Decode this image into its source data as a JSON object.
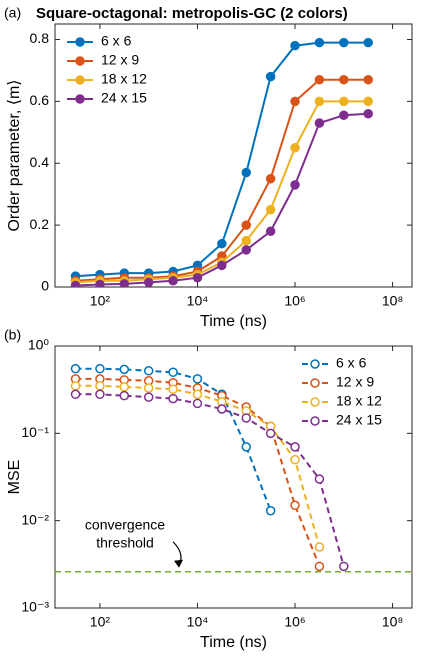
{
  "chart_data": [
    {
      "type": "line",
      "panel_label": "(a)",
      "title": "Square-octagonal: metropolis-GC (2 colors)",
      "xlabel": "Time (ns)",
      "ylabel": "Order parameter, ⟨m⟩",
      "xscale": "log",
      "yscale": "linear",
      "marker": "filled",
      "linestyle": "solid",
      "legend": "upper left",
      "xlim": [
        12,
        250000000
      ],
      "ylim": [
        0,
        0.85
      ],
      "xticks": [
        {
          "value": 100,
          "label": "10²"
        },
        {
          "value": 10000,
          "label": "10⁴"
        },
        {
          "value": 1000000,
          "label": "10⁶"
        },
        {
          "value": 100000000,
          "label": "10⁸"
        }
      ],
      "yticks": [
        0,
        0.2,
        0.4,
        0.6,
        0.8
      ],
      "x": [
        31.6,
        100,
        316,
        1000,
        3162,
        10000,
        31623,
        100000,
        316228,
        1000000,
        3162278,
        10000000,
        31622777
      ],
      "series": [
        {
          "name": "6 x 6",
          "color": "#0072BD",
          "values": [
            0.035,
            0.04,
            0.045,
            0.045,
            0.05,
            0.07,
            0.14,
            0.37,
            0.68,
            0.78,
            0.79,
            0.79,
            0.79
          ]
        },
        {
          "name": "12 x 9",
          "color": "#D95319",
          "values": [
            0.02,
            0.025,
            0.03,
            0.03,
            0.035,
            0.05,
            0.1,
            0.2,
            0.35,
            0.6,
            0.67,
            0.67,
            0.67
          ]
        },
        {
          "name": "18 x 12",
          "color": "#EDB120",
          "values": [
            0.015,
            0.02,
            0.02,
            0.025,
            0.03,
            0.04,
            0.08,
            0.15,
            0.25,
            0.45,
            0.6,
            0.6,
            0.6
          ]
        },
        {
          "name": "24 x 15",
          "color": "#7E2F8E",
          "values": [
            0.005,
            0.008,
            0.01,
            0.015,
            0.02,
            0.03,
            0.07,
            0.12,
            0.18,
            0.33,
            0.53,
            0.555,
            0.56
          ]
        }
      ]
    },
    {
      "type": "line",
      "panel_label": "(b)",
      "xlabel": "Time (ns)",
      "ylabel": "MSE",
      "xscale": "log",
      "yscale": "log",
      "marker": "open",
      "linestyle": "dashed",
      "legend": "upper right",
      "xlim": [
        12,
        250000000
      ],
      "ylim": [
        0.001,
        1
      ],
      "xticks": [
        {
          "value": 100,
          "label": "10²"
        },
        {
          "value": 10000,
          "label": "10⁴"
        },
        {
          "value": 1000000,
          "label": "10⁶"
        },
        {
          "value": 100000000,
          "label": "10⁸"
        }
      ],
      "yticks": [
        {
          "value": 0.001,
          "label": "10⁻³"
        },
        {
          "value": 0.01,
          "label": "10⁻²"
        },
        {
          "value": 0.1,
          "label": "10⁻¹"
        },
        {
          "value": 1,
          "label": "10⁰"
        }
      ],
      "threshold": 0.0026,
      "threshold_color": "#77AC30",
      "annotation": [
        "convergence",
        "threshold"
      ],
      "x": [
        31.6,
        100,
        316,
        1000,
        3162,
        10000,
        31623,
        100000,
        316228,
        1000000,
        3162278,
        10000000,
        31622777
      ],
      "series": [
        {
          "name": "6 x 6",
          "color": "#0072BD",
          "values": [
            0.55,
            0.55,
            0.54,
            0.52,
            0.5,
            0.42,
            0.28,
            0.07,
            0.013,
            null,
            null,
            null,
            null
          ]
        },
        {
          "name": "12 x 9",
          "color": "#D95319",
          "values": [
            0.42,
            0.42,
            0.41,
            0.4,
            0.38,
            0.33,
            0.27,
            0.2,
            0.12,
            0.015,
            0.003,
            null,
            null
          ]
        },
        {
          "name": "18 x 12",
          "color": "#EDB120",
          "values": [
            0.35,
            0.35,
            0.34,
            0.33,
            0.32,
            0.28,
            0.23,
            0.18,
            0.12,
            0.05,
            0.005,
            null,
            null
          ]
        },
        {
          "name": "24 x 15",
          "color": "#7E2F8E",
          "values": [
            0.28,
            0.28,
            0.27,
            0.26,
            0.25,
            0.22,
            0.19,
            0.15,
            0.1,
            0.07,
            0.03,
            0.003,
            null
          ]
        }
      ]
    }
  ]
}
